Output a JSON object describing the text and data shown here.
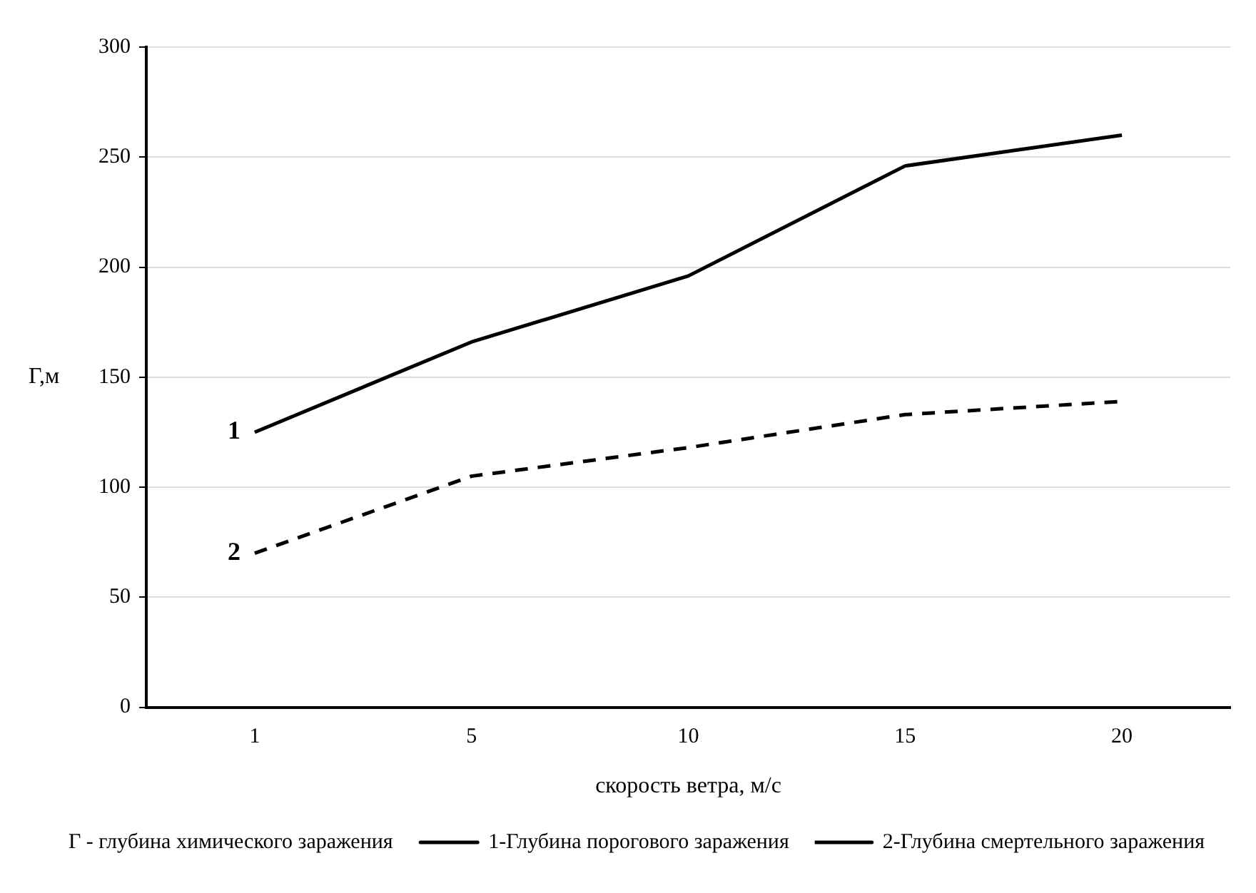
{
  "chart_data": {
    "type": "line",
    "xlabel": "скорость ветра, м/с",
    "ylabel": "Г,м",
    "categories": [
      "1",
      "5",
      "10",
      "15",
      "20"
    ],
    "series": [
      {
        "name": "1-Глубина порогового заражения",
        "color": "#000000",
        "line_style": "solid",
        "values": [
          125,
          166,
          196,
          246,
          260
        ]
      },
      {
        "name": "2-Глубина смертельного заражения",
        "color": "#000000",
        "line_style": "dashed",
        "values": [
          70,
          105,
          118,
          133,
          139
        ]
      }
    ],
    "ylim": [
      0,
      300
    ],
    "yticks": [
      0,
      50,
      100,
      150,
      200,
      250,
      300
    ],
    "grid": "y",
    "legend": "bottom right",
    "marker": "none",
    "annotations": [
      {
        "text": "1",
        "x": "1",
        "y": 125
      },
      {
        "text": "2",
        "x": "1",
        "y": 70
      },
      "Г - глубина химического заражения"
    ]
  }
}
